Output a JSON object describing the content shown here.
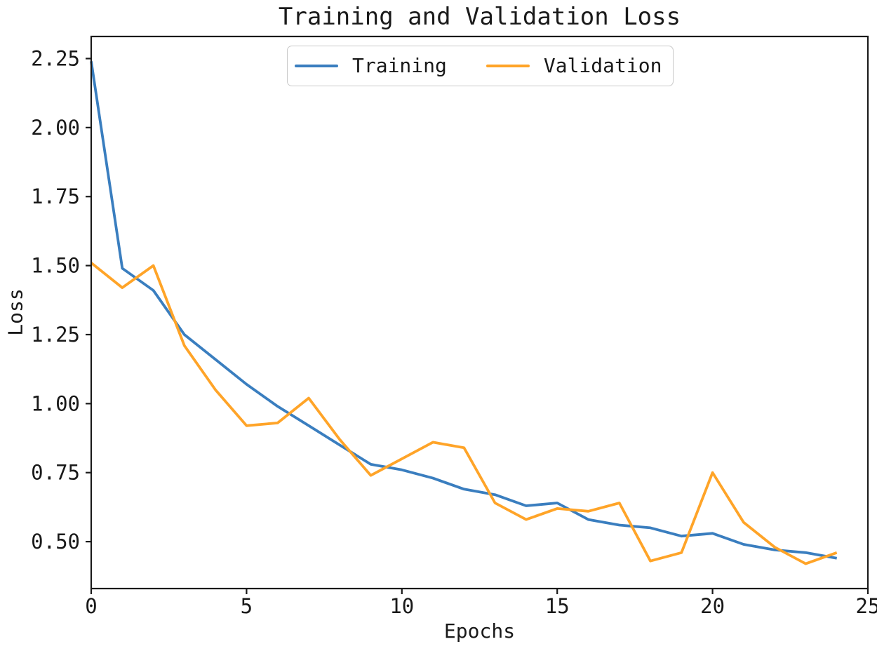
{
  "chart_data": {
    "type": "line",
    "title": "Training and Validation Loss",
    "xlabel": "Epochs",
    "ylabel": "Loss",
    "grid": false,
    "legend_position": "upper center",
    "axis_color": "#1a1a1a",
    "legend_border_color": "#c9c9c9",
    "xlim": [
      0,
      25
    ],
    "ylim": [
      0.33,
      2.33
    ],
    "x": [
      0,
      1,
      2,
      3,
      4,
      5,
      6,
      7,
      8,
      9,
      10,
      11,
      12,
      13,
      14,
      15,
      16,
      17,
      18,
      19,
      20,
      21,
      22,
      23,
      24
    ],
    "series": [
      {
        "name": "Training",
        "color": "#3a7ebf",
        "values": [
          2.24,
          1.49,
          1.41,
          1.25,
          1.16,
          1.07,
          0.99,
          0.92,
          0.85,
          0.78,
          0.76,
          0.73,
          0.69,
          0.67,
          0.63,
          0.64,
          0.58,
          0.56,
          0.55,
          0.52,
          0.53,
          0.49,
          0.47,
          0.46,
          0.44
        ]
      },
      {
        "name": "Validation",
        "color": "#ffa428",
        "values": [
          1.51,
          1.42,
          1.5,
          1.21,
          1.05,
          0.92,
          0.93,
          1.02,
          0.87,
          0.74,
          0.8,
          0.86,
          0.84,
          0.64,
          0.58,
          0.62,
          0.61,
          0.64,
          0.43,
          0.46,
          0.75,
          0.57,
          0.48,
          0.42,
          0.46
        ]
      }
    ],
    "xticks": {
      "positions": [
        0,
        5,
        10,
        15,
        20,
        25
      ],
      "labels": [
        "0",
        "5",
        "10",
        "15",
        "20",
        "25"
      ]
    },
    "yticks": {
      "positions": [
        0.5,
        0.75,
        1.0,
        1.25,
        1.5,
        1.75,
        2.0,
        2.25
      ],
      "labels": [
        "0.50",
        "0.75",
        "1.00",
        "1.25",
        "1.50",
        "1.75",
        "2.00",
        "2.25"
      ]
    }
  }
}
